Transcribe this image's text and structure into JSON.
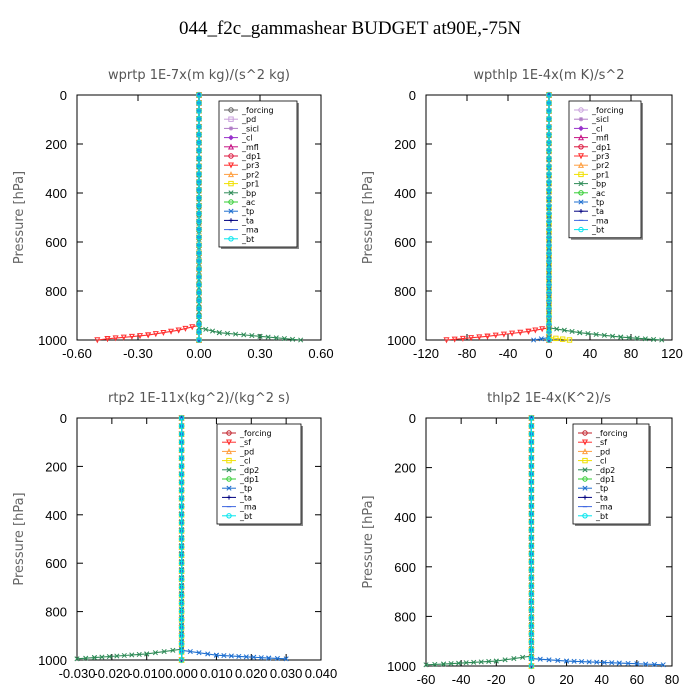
{
  "figure_title": "044_f2c_gammashear  BUDGET at90E,-75N",
  "chart_data": [
    {
      "type": "line",
      "title": "wprtp  1E-7x(m kg)/(s^2 kg)",
      "ylabel": "Pressure [hPa]",
      "xlim": [
        -0.6,
        0.6
      ],
      "ylim": [
        1000,
        0
      ],
      "xticks": [
        -0.6,
        -0.3,
        0,
        0.3,
        0.6
      ],
      "xtick_labels": [
        "-0.60",
        "-0.30",
        "0.00",
        "0.30",
        "0.60"
      ],
      "yticks": [
        0,
        200,
        400,
        600,
        800,
        1000
      ],
      "legend_position": "top-right",
      "series": [
        {
          "name": "_forcing",
          "color": "#606060",
          "marker": "o",
          "points": [
            [
              0,
              0
            ],
            [
              0,
              1000
            ]
          ]
        },
        {
          "name": "_pd",
          "color": "#c9a0dc",
          "marker": "s",
          "points": [
            [
              0,
              0
            ],
            [
              0,
              1000
            ]
          ]
        },
        {
          "name": "_sicl",
          "color": "#b07cc6",
          "marker": "*",
          "points": [
            [
              0,
              0
            ],
            [
              0,
              1000
            ]
          ]
        },
        {
          "name": "_cl",
          "color": "#9932cc",
          "marker": "d",
          "points": [
            [
              0,
              0
            ],
            [
              0,
              1000
            ]
          ]
        },
        {
          "name": "_mfl",
          "color": "#c71585",
          "marker": "t",
          "points": [
            [
              0,
              0
            ],
            [
              0,
              1000
            ]
          ]
        },
        {
          "name": "_dp1",
          "color": "#dc143c",
          "marker": "o",
          "points": [
            [
              0,
              0
            ],
            [
              0,
              1000
            ]
          ]
        },
        {
          "name": "_pr3",
          "color": "#ff3030",
          "marker": "v",
          "points": [
            [
              0,
              0
            ],
            [
              0,
              940
            ],
            [
              -0.1,
              960
            ],
            [
              -0.25,
              980
            ],
            [
              -0.45,
              995
            ],
            [
              -0.5,
              1000
            ]
          ]
        },
        {
          "name": "_pr2",
          "color": "#ff9f40",
          "marker": "t",
          "points": [
            [
              0,
              0
            ],
            [
              0,
              1000
            ]
          ]
        },
        {
          "name": "_pr1",
          "color": "#f0e000",
          "marker": "s",
          "points": [
            [
              0,
              0
            ],
            [
              0,
              1000
            ]
          ]
        },
        {
          "name": "_bp",
          "color": "#2e8b57",
          "marker": "x",
          "points": [
            [
              0,
              0
            ],
            [
              0,
              950
            ],
            [
              0.1,
              970
            ],
            [
              0.3,
              985
            ],
            [
              0.5,
              1000
            ]
          ]
        },
        {
          "name": "_ac",
          "color": "#32cd32",
          "marker": "o",
          "points": [
            [
              0,
              0
            ],
            [
              0,
              1000
            ]
          ]
        },
        {
          "name": "_tp",
          "color": "#1e6fd0",
          "marker": "x",
          "points": [
            [
              0,
              0
            ],
            [
              0,
              1000
            ]
          ]
        },
        {
          "name": "_ta",
          "color": "#000080",
          "marker": "+",
          "points": [
            [
              0,
              0
            ],
            [
              0,
              1000
            ]
          ]
        },
        {
          "name": "_ma",
          "color": "#4169e1",
          "marker": "-",
          "points": [
            [
              0,
              0
            ],
            [
              0,
              1000
            ]
          ]
        },
        {
          "name": "_bt",
          "color": "#00e5ee",
          "marker": "o",
          "points": [
            [
              0,
              0
            ],
            [
              0,
              1000
            ]
          ]
        }
      ]
    },
    {
      "type": "line",
      "title": "wpthlp  1E-4x(m K)/s^2",
      "ylabel": "Pressure [hPa]",
      "xlim": [
        -120,
        120
      ],
      "ylim": [
        1000,
        0
      ],
      "xticks": [
        -120,
        -80,
        -40,
        0,
        40,
        80,
        120
      ],
      "xtick_labels": [
        "-120",
        "-80",
        "-40",
        "0",
        "40",
        "80",
        "120"
      ],
      "yticks": [
        0,
        200,
        400,
        600,
        800,
        1000
      ],
      "legend_position": "top-right",
      "series": [
        {
          "name": "_forcing",
          "color": "#c9a0dc",
          "marker": "o",
          "points": [
            [
              0,
              0
            ],
            [
              0,
              1000
            ]
          ]
        },
        {
          "name": "_sicl",
          "color": "#b07cc6",
          "marker": "*",
          "points": [
            [
              0,
              0
            ],
            [
              0,
              1000
            ]
          ]
        },
        {
          "name": "_cl",
          "color": "#9932cc",
          "marker": "d",
          "points": [
            [
              0,
              0
            ],
            [
              0,
              1000
            ]
          ]
        },
        {
          "name": "_mfl",
          "color": "#c71585",
          "marker": "t",
          "points": [
            [
              0,
              0
            ],
            [
              0,
              1000
            ]
          ]
        },
        {
          "name": "_dp1",
          "color": "#dc143c",
          "marker": "o",
          "points": [
            [
              0,
              0
            ],
            [
              0,
              1000
            ]
          ]
        },
        {
          "name": "_pr3",
          "color": "#ff3030",
          "marker": "v",
          "points": [
            [
              0,
              0
            ],
            [
              0,
              950
            ],
            [
              -20,
              965
            ],
            [
              -60,
              985
            ],
            [
              -100,
              1000
            ]
          ]
        },
        {
          "name": "_pr2",
          "color": "#ff9f40",
          "marker": "t",
          "points": [
            [
              0,
              0
            ],
            [
              0,
              1000
            ]
          ]
        },
        {
          "name": "_pr1",
          "color": "#f0e000",
          "marker": "s",
          "points": [
            [
              0,
              0
            ],
            [
              0,
              990
            ],
            [
              20,
              1000
            ]
          ]
        },
        {
          "name": "_bp",
          "color": "#2e8b57",
          "marker": "x",
          "points": [
            [
              0,
              0
            ],
            [
              0,
              950
            ],
            [
              30,
              970
            ],
            [
              70,
              988
            ],
            [
              110,
              1000
            ]
          ]
        },
        {
          "name": "_ac",
          "color": "#32cd32",
          "marker": "o",
          "points": [
            [
              0,
              0
            ],
            [
              0,
              1000
            ]
          ]
        },
        {
          "name": "_tp",
          "color": "#1e6fd0",
          "marker": "x",
          "points": [
            [
              0,
              0
            ],
            [
              0,
              990
            ],
            [
              -15,
              1000
            ]
          ]
        },
        {
          "name": "_ta",
          "color": "#000080",
          "marker": "+",
          "points": [
            [
              0,
              0
            ],
            [
              0,
              1000
            ]
          ]
        },
        {
          "name": "_ma",
          "color": "#4169e1",
          "marker": "-",
          "points": [
            [
              0,
              0
            ],
            [
              0,
              1000
            ]
          ]
        },
        {
          "name": "_bt",
          "color": "#00e5ee",
          "marker": "o",
          "points": [
            [
              0,
              0
            ],
            [
              0,
              1000
            ]
          ]
        }
      ]
    },
    {
      "type": "line",
      "title": "rtp2  1E-11x(kg^2)/(kg^2 s)",
      "ylabel": "Pressure [hPa]",
      "xlim": [
        -0.03,
        0.04
      ],
      "ylim": [
        1000,
        0
      ],
      "xticks": [
        -0.03,
        -0.02,
        -0.01,
        0,
        0.01,
        0.02,
        0.03,
        0.04
      ],
      "xtick_labels": [
        "-0.030",
        "-0.020",
        "-0.010",
        "0.000",
        "0.010",
        "0.020",
        "0.030",
        "0.040"
      ],
      "yticks": [
        0,
        200,
        400,
        600,
        800,
        1000
      ],
      "legend_position": "top-right",
      "series": [
        {
          "name": "_forcing",
          "color": "#c0202a",
          "marker": "o",
          "points": [
            [
              0,
              0
            ],
            [
              0,
              1000
            ]
          ]
        },
        {
          "name": "_sf",
          "color": "#ff3030",
          "marker": "v",
          "points": [
            [
              0,
              0
            ],
            [
              0,
              1000
            ]
          ]
        },
        {
          "name": "_pd",
          "color": "#ff9f40",
          "marker": "t",
          "points": [
            [
              0,
              0
            ],
            [
              0,
              1000
            ]
          ]
        },
        {
          "name": "_cl",
          "color": "#f0e000",
          "marker": "s",
          "points": [
            [
              0,
              0
            ],
            [
              0,
              1000
            ]
          ]
        },
        {
          "name": "_dp2",
          "color": "#2e8b57",
          "marker": "x",
          "points": [
            [
              0,
              0
            ],
            [
              0,
              955
            ],
            [
              -0.01,
              975
            ],
            [
              -0.025,
              990
            ],
            [
              -0.03,
              995
            ]
          ]
        },
        {
          "name": "_dp1",
          "color": "#32cd32",
          "marker": "o",
          "points": [
            [
              0,
              0
            ],
            [
              0,
              1000
            ]
          ]
        },
        {
          "name": "_tp",
          "color": "#1e6fd0",
          "marker": "x",
          "points": [
            [
              0,
              0
            ],
            [
              0,
              960
            ],
            [
              0.01,
              980
            ],
            [
              0.025,
              992
            ],
            [
              0.03,
              995
            ]
          ]
        },
        {
          "name": "_ta",
          "color": "#000080",
          "marker": "+",
          "points": [
            [
              0,
              0
            ],
            [
              0,
              1000
            ]
          ]
        },
        {
          "name": "_ma",
          "color": "#4169e1",
          "marker": "-",
          "points": [
            [
              0,
              0
            ],
            [
              0,
              1000
            ]
          ]
        },
        {
          "name": "_bt",
          "color": "#00e5ee",
          "marker": "o",
          "points": [
            [
              0,
              0
            ],
            [
              0,
              1000
            ]
          ]
        }
      ]
    },
    {
      "type": "line",
      "title": "thlp2  1E-4x(K^2)/s",
      "ylabel": "Pressure [hPa]",
      "xlim": [
        -60,
        80
      ],
      "ylim": [
        1000,
        0
      ],
      "xticks": [
        -60,
        -40,
        -20,
        0,
        20,
        40,
        60,
        80
      ],
      "xtick_labels": [
        "-60",
        "-40",
        "-20",
        "0",
        "20",
        "40",
        "60",
        "80"
      ],
      "yticks": [
        0,
        200,
        400,
        600,
        800,
        1000
      ],
      "legend_position": "top-right",
      "series": [
        {
          "name": "_forcing",
          "color": "#c0202a",
          "marker": "o",
          "points": [
            [
              0,
              0
            ],
            [
              0,
              1000
            ]
          ]
        },
        {
          "name": "_sf",
          "color": "#ff3030",
          "marker": "v",
          "points": [
            [
              0,
              0
            ],
            [
              0,
              1000
            ]
          ]
        },
        {
          "name": "_pd",
          "color": "#ff9f40",
          "marker": "t",
          "points": [
            [
              0,
              0
            ],
            [
              0,
              1000
            ]
          ]
        },
        {
          "name": "_cl",
          "color": "#f0e000",
          "marker": "s",
          "points": [
            [
              0,
              0
            ],
            [
              0,
              1000
            ]
          ]
        },
        {
          "name": "_dp2",
          "color": "#2e8b57",
          "marker": "x",
          "points": [
            [
              0,
              0
            ],
            [
              0,
              960
            ],
            [
              -20,
              980
            ],
            [
              -50,
              992
            ],
            [
              -60,
              995
            ]
          ]
        },
        {
          "name": "_dp1",
          "color": "#32cd32",
          "marker": "o",
          "points": [
            [
              0,
              0
            ],
            [
              0,
              1000
            ]
          ]
        },
        {
          "name": "_tp",
          "color": "#1e6fd0",
          "marker": "x",
          "points": [
            [
              0,
              0
            ],
            [
              0,
              970
            ],
            [
              20,
              980
            ],
            [
              50,
              988
            ],
            [
              75,
              995
            ]
          ]
        },
        {
          "name": "_ta",
          "color": "#000080",
          "marker": "+",
          "points": [
            [
              0,
              0
            ],
            [
              0,
              1000
            ]
          ]
        },
        {
          "name": "_ma",
          "color": "#4169e1",
          "marker": "-",
          "points": [
            [
              0,
              0
            ],
            [
              0,
              1000
            ]
          ]
        },
        {
          "name": "_bt",
          "color": "#00e5ee",
          "marker": "o",
          "points": [
            [
              0,
              0
            ],
            [
              0,
              1000
            ]
          ]
        }
      ]
    }
  ]
}
